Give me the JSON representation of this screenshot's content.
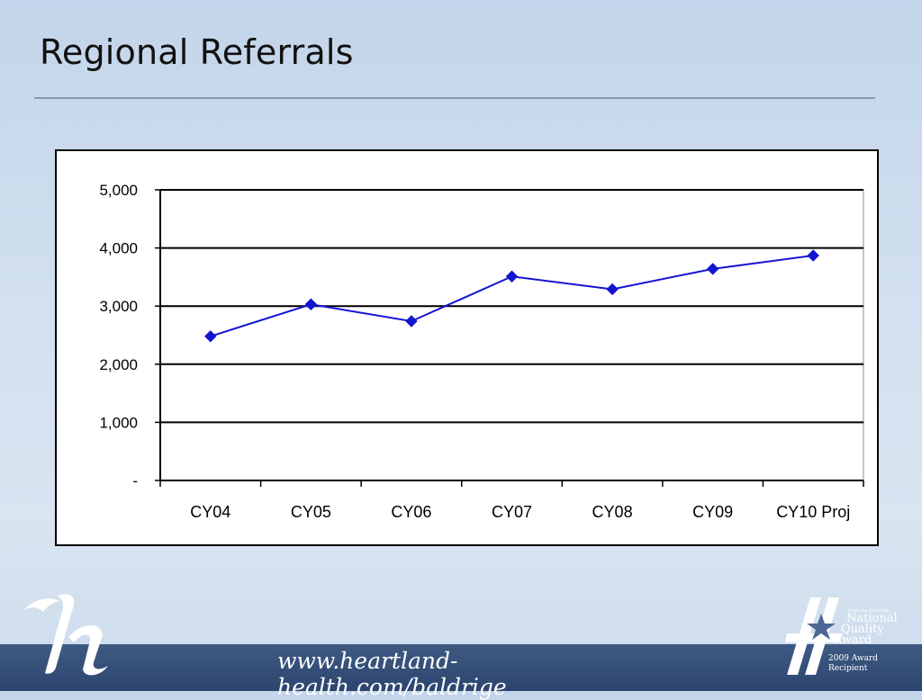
{
  "slide": {
    "title": "Regional Referrals",
    "footer_url": "www.heartland-health.com/baldrige",
    "award": {
      "small": "Malcolm Baldrige",
      "line1": "National",
      "line2": "Quality",
      "line3": "Award",
      "year": "2009 Award",
      "recipient": "Recipient"
    },
    "colors": {
      "series": "#1414d2",
      "footer": "#2f4a74",
      "background": "#cbdbec"
    },
    "logo_icon": "heartland-h-logo",
    "award_icon": "baldrige-award-star"
  },
  "chart_data": {
    "type": "line",
    "title": "",
    "xlabel": "",
    "ylabel": "",
    "categories": [
      "CY04",
      "CY05",
      "CY06",
      "CY07",
      "CY08",
      "CY09",
      "CY10 Proj"
    ],
    "series": [
      {
        "values": [
          2480,
          3030,
          2740,
          3510,
          3290,
          3640,
          3870
        ]
      }
    ],
    "ylim": [
      0,
      5000
    ],
    "yticks": [
      0,
      1000,
      2000,
      3000,
      4000,
      5000
    ],
    "ytick_labels": [
      "-",
      "1,000",
      "2,000",
      "3,000",
      "4,000",
      "5,000"
    ],
    "grid": true,
    "legend": "none"
  }
}
